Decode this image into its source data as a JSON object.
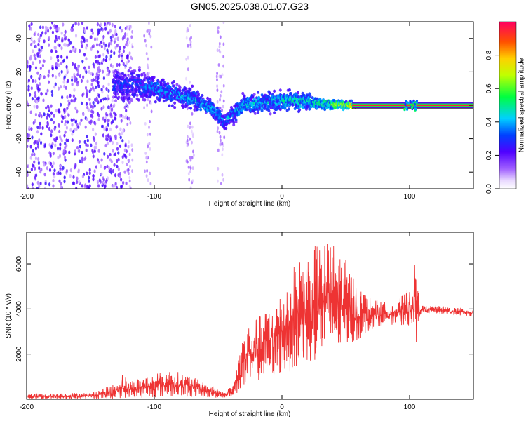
{
  "figure": {
    "title": "GN05.2025.038.01.07.G23"
  },
  "chart_data": [
    {
      "type": "heatmap",
      "title": "GN05.2025.038.01.07.G23",
      "xlabel": "Height of straight line (km)",
      "ylabel": "Frequency (Hz)",
      "xlim": [
        -200,
        150
      ],
      "ylim": [
        -50,
        50
      ],
      "x_ticks": [
        -200,
        -100,
        0,
        100
      ],
      "y_ticks": [
        -40,
        -20,
        0,
        20,
        40
      ],
      "x_tick_labels": [
        "-200",
        "-100",
        "0",
        "100"
      ],
      "y_tick_labels": [
        "-40",
        "-20",
        "0",
        "20",
        "40"
      ],
      "colorbar": {
        "label": "Normalized spectral amplitude",
        "range": [
          0,
          1
        ],
        "ticks": [
          0.0,
          0.2,
          0.4,
          0.6,
          0.8
        ],
        "tick_labels": [
          "0.0",
          "0.2",
          "0.4",
          "0.6",
          "0.8"
        ],
        "colormap": "rainbow (white-violet-blue-cyan-green-yellow-orange-red)"
      },
      "ridge": [
        {
          "x": -130,
          "freq": 12,
          "spread": 8,
          "amp": 0.3
        },
        {
          "x": -110,
          "freq": 12,
          "spread": 8,
          "amp": 0.35
        },
        {
          "x": -90,
          "freq": 8,
          "spread": 6,
          "amp": 0.4
        },
        {
          "x": -70,
          "freq": 4,
          "spread": 5,
          "amp": 0.42
        },
        {
          "x": -55,
          "freq": -2,
          "spread": 4,
          "amp": 0.45
        },
        {
          "x": -45,
          "freq": -10,
          "spread": 4,
          "amp": 0.4
        },
        {
          "x": -30,
          "freq": 0,
          "spread": 5,
          "amp": 0.45
        },
        {
          "x": -10,
          "freq": 2,
          "spread": 5,
          "amp": 0.45
        },
        {
          "x": 10,
          "freq": 3,
          "spread": 5,
          "amp": 0.5
        },
        {
          "x": 30,
          "freq": 1,
          "spread": 3,
          "amp": 0.55
        },
        {
          "x": 50,
          "freq": 0,
          "spread": 2,
          "amp": 0.75
        },
        {
          "x": 60,
          "freq": 0,
          "spread": 1.5,
          "amp": 0.9
        },
        {
          "x": 100,
          "freq": 0,
          "spread": 1.5,
          "amp": 0.95
        },
        {
          "x": 150,
          "freq": 0,
          "spread": 1.5,
          "amp": 0.95
        }
      ],
      "noise_region": {
        "x_from": -200,
        "x_to": -130,
        "amp": 0.2
      }
    },
    {
      "type": "line",
      "xlabel": "Height of straight line (km)",
      "ylabel": "SNR (10 * v/v)",
      "xlim": [
        -200,
        150
      ],
      "ylim": [
        0,
        7400
      ],
      "x_ticks": [
        -200,
        -100,
        0,
        100
      ],
      "y_ticks": [
        2000,
        4000,
        6000
      ],
      "x_tick_labels": [
        "-200",
        "-100",
        "0",
        "100"
      ],
      "y_tick_labels": [
        "2000",
        "4000",
        "6000"
      ],
      "color": "#ee3333",
      "series": [
        {
          "envelope_x": [
            -200,
            -150,
            -130,
            -125,
            -120,
            -110,
            -100,
            -90,
            -80,
            -70,
            -60,
            -50,
            -45,
            -38,
            -30,
            -20,
            -10,
            0,
            10,
            20,
            30,
            40,
            50,
            60,
            70,
            80,
            90,
            100,
            105,
            108,
            110,
            120,
            130,
            140,
            150
          ],
          "envelope_low": [
            0,
            0,
            20,
            50,
            80,
            60,
            80,
            100,
            120,
            100,
            80,
            50,
            80,
            150,
            400,
            800,
            900,
            1100,
            1300,
            1500,
            1800,
            2000,
            2200,
            2600,
            3100,
            3300,
            3300,
            3200,
            2400,
            3700,
            3800,
            3800,
            3750,
            3700,
            3650
          ],
          "envelope_high": [
            250,
            300,
            700,
            1200,
            800,
            1000,
            1100,
            1300,
            1200,
            1000,
            700,
            500,
            300,
            700,
            3100,
            3600,
            4100,
            4800,
            6000,
            6500,
            7000,
            7000,
            6200,
            5000,
            4500,
            4300,
            4300,
            5000,
            6200,
            4200,
            4150,
            4150,
            4100,
            4050,
            4000
          ]
        }
      ]
    }
  ]
}
